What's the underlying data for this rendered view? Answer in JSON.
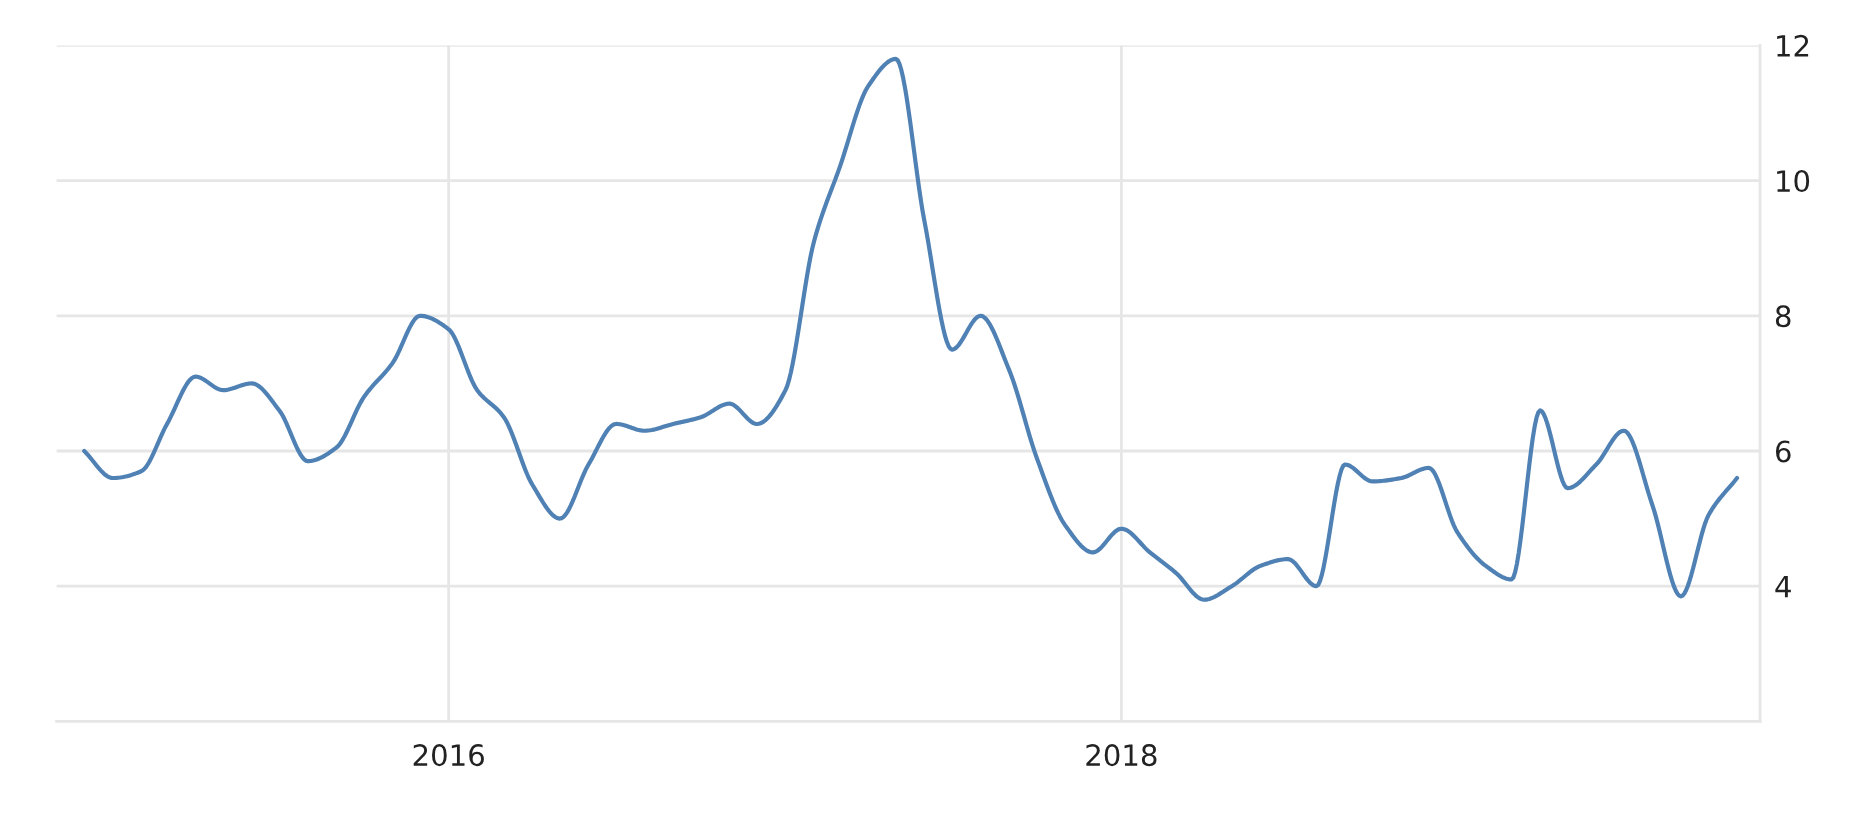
{
  "chart_data": {
    "type": "line",
    "x": [
      "2014-12",
      "2015-01",
      "2015-02",
      "2015-03",
      "2015-04",
      "2015-05",
      "2015-06",
      "2015-07",
      "2015-08",
      "2015-09",
      "2015-10",
      "2015-11",
      "2015-12",
      "2016-01",
      "2016-02",
      "2016-03",
      "2016-04",
      "2016-05",
      "2016-06",
      "2016-07",
      "2016-08",
      "2016-09",
      "2016-10",
      "2016-11",
      "2016-12",
      "2017-01",
      "2017-02",
      "2017-03",
      "2017-04",
      "2017-05",
      "2017-06",
      "2017-07",
      "2017-08",
      "2017-09",
      "2017-10",
      "2017-11",
      "2017-12",
      "2018-01",
      "2018-02",
      "2018-03",
      "2018-04",
      "2018-05",
      "2018-06",
      "2018-07",
      "2018-08",
      "2018-09",
      "2018-10",
      "2018-11",
      "2018-12",
      "2019-01",
      "2019-02",
      "2019-03",
      "2019-04",
      "2019-05",
      "2019-06",
      "2019-07",
      "2019-08",
      "2019-09",
      "2019-10",
      "2019-11"
    ],
    "series": [
      {
        "color": "#4f81b4",
        "values": [
          6.0,
          5.6,
          5.7,
          6.4,
          7.1,
          6.9,
          7.0,
          6.6,
          5.85,
          6.05,
          6.8,
          7.3,
          8.0,
          7.8,
          6.9,
          6.5,
          5.5,
          5.0,
          5.8,
          6.4,
          6.3,
          6.4,
          6.5,
          6.7,
          6.4,
          6.9,
          9.1,
          10.2,
          11.4,
          11.8,
          9.4,
          7.5,
          8.0,
          7.2,
          5.9,
          4.9,
          4.5,
          4.85,
          4.5,
          4.2,
          3.8,
          4.0,
          4.3,
          4.4,
          4.0,
          5.8,
          5.55,
          5.6,
          5.75,
          4.8,
          4.3,
          4.1,
          6.6,
          5.45,
          5.8,
          6.3,
          5.2,
          3.85,
          5.05,
          5.6
        ]
      }
    ],
    "xlim": [
      "2014-11-01",
      "2019-11-26"
    ],
    "xticks": [
      "2016",
      "2018"
    ],
    "ylim": [
      2,
      12
    ],
    "yticks": [
      {
        "value": 2,
        "label": null
      },
      4,
      6,
      8,
      10,
      12
    ],
    "grid": true
  }
}
